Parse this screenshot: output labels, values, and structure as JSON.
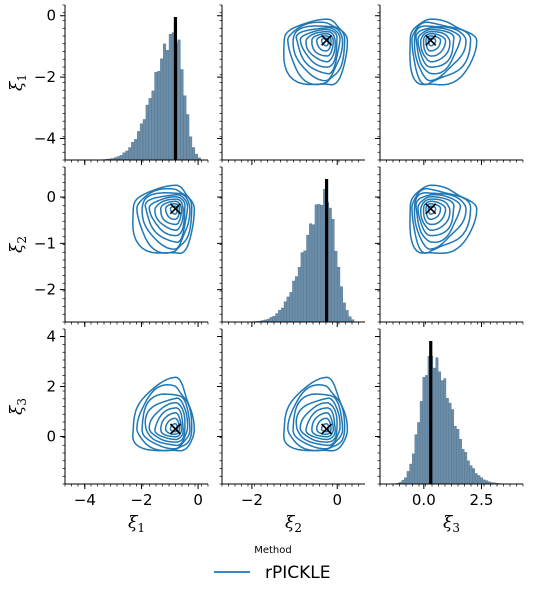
{
  "chart_data": {
    "type": "pairplot",
    "variables": [
      "ξ1",
      "ξ2",
      "ξ3"
    ],
    "axis_labels": [
      {
        "base": "ξ",
        "sub": "1"
      },
      {
        "base": "ξ",
        "sub": "2"
      },
      {
        "base": "ξ",
        "sub": "3"
      }
    ],
    "ranges": [
      [
        -4.7,
        0.35
      ],
      [
        -2.7,
        0.65
      ],
      [
        -1.9,
        4.3
      ]
    ],
    "ticks": [
      [
        -4,
        -2,
        0
      ],
      [
        -2,
        -1,
        0
      ],
      [
        0,
        2,
        4
      ]
    ],
    "x_tick_labels": [
      [
        "−4",
        "−2",
        "0"
      ],
      [
        "−2",
        "0"
      ],
      [
        "0.0",
        "2.5"
      ]
    ],
    "x_ticks_shown": [
      [
        -4,
        -2,
        0
      ],
      [
        -2,
        0
      ],
      [
        0,
        2.5
      ]
    ],
    "y_tick_labels": [
      [
        "0",
        "−2",
        "−4"
      ],
      [
        "0",
        "−1",
        "−2"
      ],
      [
        "4",
        "2",
        "0"
      ]
    ],
    "y_ticks_shown": [
      [
        0,
        -2,
        -4
      ],
      [
        0,
        -1,
        -2
      ],
      [
        4,
        2,
        0
      ]
    ],
    "true_values": [
      -0.8,
      -0.25,
      0.3
    ],
    "marker": "x",
    "diagonal": "histogram",
    "off_diagonal": "kde_contours",
    "series_color": "#1f77b4",
    "hist_color": "#6b8fab",
    "truth_line_color": "#000000",
    "distributions": [
      {
        "mode": -0.8,
        "left_spread": 0.75,
        "right_spread": 0.3,
        "lo": -4.4,
        "hi": 0.1
      },
      {
        "mode": -0.25,
        "left_spread": 0.5,
        "right_spread": 0.22,
        "lo": -2.5,
        "hi": 0.4
      },
      {
        "mode": 0.3,
        "left_spread": 0.45,
        "right_spread": 0.9,
        "lo": -1.3,
        "hi": 3.7
      }
    ],
    "legend": {
      "title": "Method",
      "entries": [
        "rPICKLE"
      ],
      "position": "bottom-center"
    }
  }
}
